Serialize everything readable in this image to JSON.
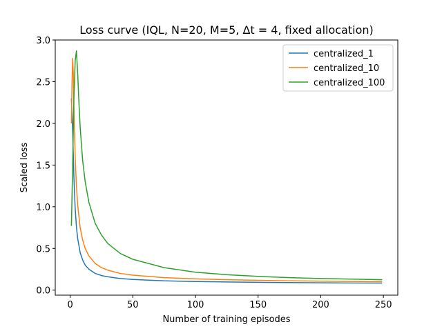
{
  "chart_data": {
    "type": "line",
    "title": "Loss curve (IQL, N=20, M=5, Δt = 4, fixed allocation)",
    "xlabel": "Number of training episodes",
    "ylabel": "Scaled loss",
    "xlim": [
      -11.9,
      261.5
    ],
    "ylim": [
      -0.06,
      3.0
    ],
    "xticks": [
      0,
      50,
      100,
      150,
      200,
      250
    ],
    "yticks": [
      0.0,
      0.5,
      1.0,
      1.5,
      2.0,
      2.5,
      3.0
    ],
    "xtick_labels": [
      "0",
      "50",
      "100",
      "150",
      "200",
      "250"
    ],
    "ytick_labels": [
      "0.0",
      "0.5",
      "1.0",
      "1.5",
      "2.0",
      "2.5",
      "3.0"
    ],
    "grid": false,
    "legend_position": "top-right",
    "series": [
      {
        "name": "centralized_1",
        "color": "#1f77b4",
        "x": [
          1,
          2,
          3,
          4,
          5,
          6,
          8,
          10,
          12,
          15,
          20,
          25,
          30,
          40,
          50,
          75,
          100,
          125,
          150,
          175,
          200,
          225,
          249
        ],
        "y": [
          2.3,
          1.9,
          1.35,
          0.98,
          0.76,
          0.62,
          0.45,
          0.36,
          0.3,
          0.25,
          0.2,
          0.175,
          0.16,
          0.14,
          0.128,
          0.112,
          0.103,
          0.098,
          0.094,
          0.091,
          0.088,
          0.086,
          0.085
        ]
      },
      {
        "name": "centralized_10",
        "color": "#ff7f0e",
        "x": [
          1,
          1.5,
          2,
          2.5,
          3,
          4,
          5,
          6,
          8,
          10,
          12,
          15,
          20,
          25,
          30,
          40,
          50,
          75,
          100,
          125,
          150,
          175,
          200,
          225,
          249
        ],
        "y": [
          2.0,
          2.5,
          2.78,
          2.6,
          2.2,
          1.6,
          1.25,
          1.02,
          0.75,
          0.6,
          0.5,
          0.41,
          0.32,
          0.27,
          0.24,
          0.2,
          0.18,
          0.15,
          0.135,
          0.125,
          0.118,
          0.112,
          0.108,
          0.104,
          0.101
        ]
      },
      {
        "name": "centralized_100",
        "color": "#2ca02c",
        "x": [
          1,
          2,
          3,
          4,
          5,
          6,
          7,
          8,
          10,
          12,
          15,
          20,
          25,
          30,
          40,
          50,
          75,
          100,
          125,
          150,
          175,
          200,
          225,
          249
        ],
        "y": [
          0.77,
          1.5,
          2.3,
          2.75,
          2.87,
          2.6,
          2.25,
          1.95,
          1.55,
          1.3,
          1.05,
          0.8,
          0.66,
          0.56,
          0.44,
          0.37,
          0.27,
          0.215,
          0.185,
          0.165,
          0.15,
          0.14,
          0.132,
          0.125
        ]
      }
    ]
  }
}
